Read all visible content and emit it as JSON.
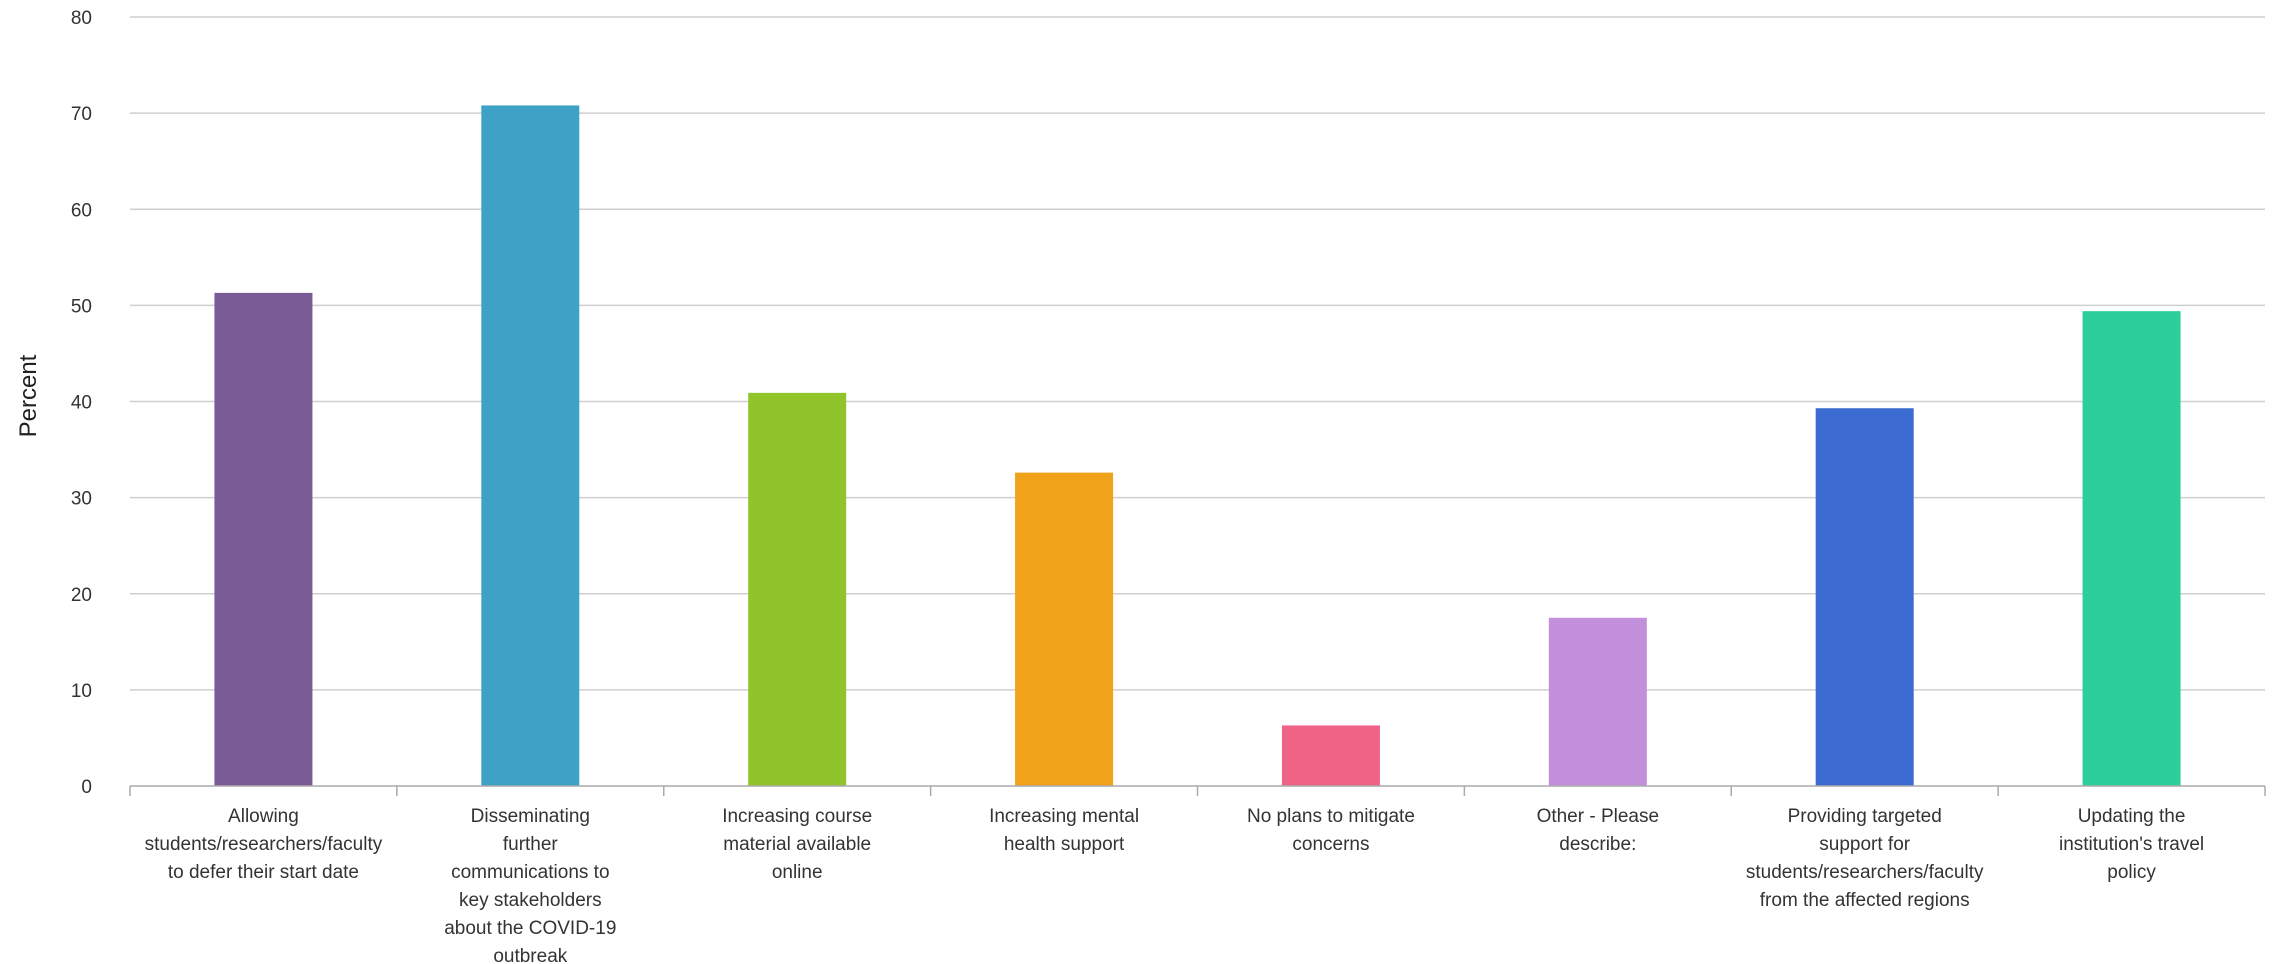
{
  "chart_data": {
    "type": "bar",
    "title": "",
    "xlabel": "",
    "ylabel": "Percent",
    "ylim": [
      0,
      80
    ],
    "yticks": [
      0,
      10,
      20,
      30,
      40,
      50,
      60,
      70,
      80
    ],
    "grid": true,
    "legend": "none",
    "categories": [
      [
        "Allowing",
        "students/researchers/faculty",
        "to defer their start date"
      ],
      [
        "Disseminating",
        "further",
        "communications to",
        "key stakeholders",
        "about the COVID-19",
        "outbreak"
      ],
      [
        "Increasing course",
        "material available",
        "online"
      ],
      [
        "Increasing mental",
        "health support"
      ],
      [
        "No plans to mitigate",
        "concerns"
      ],
      [
        "Other - Please",
        "describe:"
      ],
      [
        "Providing targeted",
        "support for",
        "students/researchers/faculty",
        "from the affected regions"
      ],
      [
        "Updating the",
        "institution's travel",
        "policy"
      ]
    ],
    "values": [
      51.3,
      70.8,
      40.9,
      32.6,
      6.3,
      17.5,
      39.3,
      49.4
    ],
    "colors": [
      "#7b5b95",
      "#3da2c6",
      "#8fc42a",
      "#f0a21b",
      "#ef6486",
      "#c18fdb",
      "#3b6ad0",
      "#2ccf9a"
    ]
  }
}
